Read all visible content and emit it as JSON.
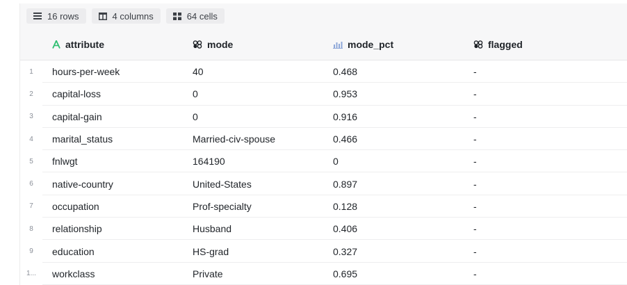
{
  "toolbar": {
    "rows_label": "16 rows",
    "columns_label": "4 columns",
    "cells_label": "64 cells"
  },
  "columns": [
    {
      "name": "attribute",
      "icon": "text-type-icon"
    },
    {
      "name": "mode",
      "icon": "categorical-icon"
    },
    {
      "name": "mode_pct",
      "icon": "histogram-icon"
    },
    {
      "name": "flagged",
      "icon": "categorical-icon"
    }
  ],
  "rows": [
    {
      "index": "1",
      "attribute": "hours-per-week",
      "mode": "40",
      "mode_pct": "0.468",
      "flagged": "-"
    },
    {
      "index": "2",
      "attribute": "capital-loss",
      "mode": "0",
      "mode_pct": "0.953",
      "flagged": "-"
    },
    {
      "index": "3",
      "attribute": "capital-gain",
      "mode": "0",
      "mode_pct": "0.916",
      "flagged": "-"
    },
    {
      "index": "4",
      "attribute": "marital_status",
      "mode": "Married-civ-spouse",
      "mode_pct": "0.466",
      "flagged": "-"
    },
    {
      "index": "5",
      "attribute": "fnlwgt",
      "mode": "164190",
      "mode_pct": "0",
      "flagged": "-"
    },
    {
      "index": "6",
      "attribute": "native-country",
      "mode": "United-States",
      "mode_pct": "0.897",
      "flagged": "-"
    },
    {
      "index": "7",
      "attribute": "occupation",
      "mode": "Prof-specialty",
      "mode_pct": "0.128",
      "flagged": "-"
    },
    {
      "index": "8",
      "attribute": "relationship",
      "mode": "Husband",
      "mode_pct": "0.406",
      "flagged": "-"
    },
    {
      "index": "9",
      "attribute": "education",
      "mode": "HS-grad",
      "mode_pct": "0.327",
      "flagged": "-"
    },
    {
      "index": "1...",
      "attribute": "workclass",
      "mode": "Private",
      "mode_pct": "0.695",
      "flagged": "-"
    }
  ],
  "colors": {
    "text_type_accent": "#2fbf71",
    "histogram_accent": "#8fa8d9"
  }
}
